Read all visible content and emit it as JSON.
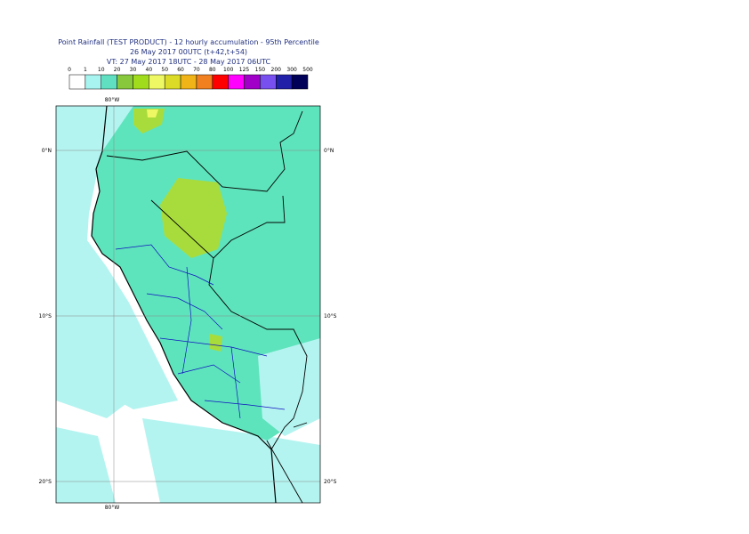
{
  "header": {
    "title": "Point Rainfall (TEST PRODUCT) - 12 hourly accumulation - 95th Percentile",
    "base_time": "26 May 2017 00UTC (t+42,t+54)",
    "valid_time": "VT: 27 May 2017 18UTC - 28 May 2017 06UTC"
  },
  "legend": {
    "labels": [
      0,
      1,
      10,
      20,
      30,
      40,
      50,
      60,
      70,
      80,
      100,
      125,
      150,
      200,
      300,
      500
    ],
    "colors": [
      "#ffffff",
      "#a8f4f0",
      "#60e0c0",
      "#88c83c",
      "#a0dc1c",
      "#eef864",
      "#dcdc28",
      "#f0b418",
      "#f08020",
      "#ff0000",
      "#ff00ff",
      "#a000c8",
      "#7850f0",
      "#2020a8",
      "#000058"
    ]
  },
  "map": {
    "lon_label_top": "80°W",
    "lon_label_bottom": "80°W",
    "lat_labels_left": [
      "0°N",
      "10°S",
      "20°S"
    ],
    "lat_labels_right": [
      "0°N",
      "10°S",
      "20°S"
    ]
  }
}
